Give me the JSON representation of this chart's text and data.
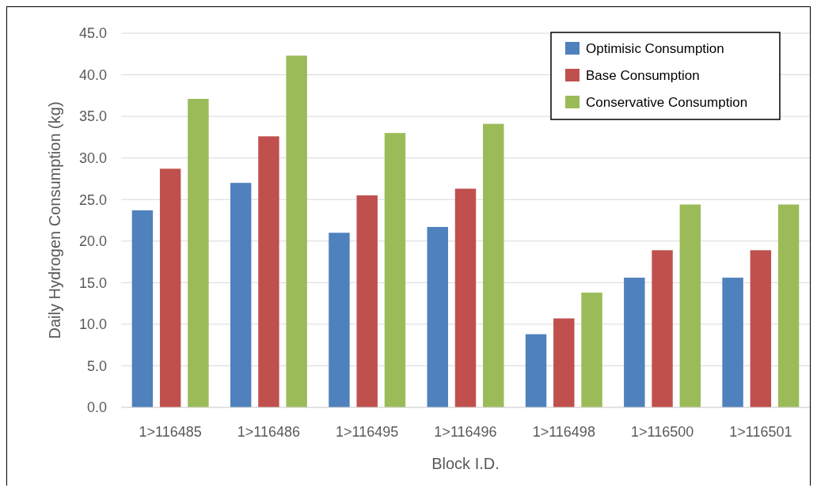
{
  "chart_data": {
    "type": "bar",
    "xlabel": "Block I.D.",
    "ylabel": "Daily Hydrogen Consumption (kg)",
    "categories": [
      "1>116485",
      "1>116486",
      "1>116495",
      "1>116496",
      "1>116498",
      "1>116500",
      "1>116501"
    ],
    "series": [
      {
        "name": "Optimisic Consumption",
        "color": "#4f81bd",
        "values": [
          23.7,
          27.0,
          21.0,
          21.7,
          8.8,
          15.6,
          15.6
        ]
      },
      {
        "name": "Base Consumption",
        "color": "#c0504d",
        "values": [
          28.7,
          32.6,
          25.5,
          26.3,
          10.7,
          18.9,
          18.9
        ]
      },
      {
        "name": "Conservative Consumption",
        "color": "#9bbb59",
        "values": [
          37.1,
          42.3,
          33.0,
          34.1,
          13.8,
          24.4,
          24.4
        ]
      }
    ],
    "ylim": [
      0,
      45
    ],
    "yticks": [
      {
        "value": 0,
        "label": "0.0"
      },
      {
        "value": 5,
        "label": "5.0"
      },
      {
        "value": 10,
        "label": "10.0"
      },
      {
        "value": 15,
        "label": "15.0"
      },
      {
        "value": 20,
        "label": "20.0"
      },
      {
        "value": 25,
        "label": "25.0"
      },
      {
        "value": 30,
        "label": "30.0"
      },
      {
        "value": 35,
        "label": "35.0"
      },
      {
        "value": 40,
        "label": "40.0"
      },
      {
        "value": 45,
        "label": "45.0"
      }
    ],
    "grid": "y",
    "legend": "top right"
  }
}
